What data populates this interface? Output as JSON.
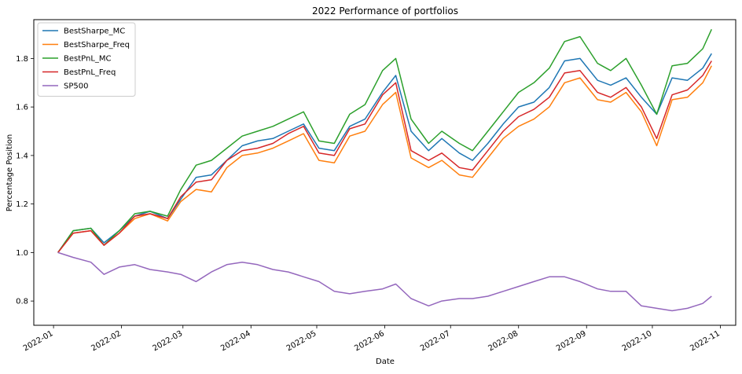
{
  "chart_data": {
    "type": "line",
    "title": "2022 Performance of portfolios",
    "xlabel": "Date",
    "ylabel": "Percentage Position",
    "xlim": [
      "2021-12-23",
      "2022-11-08"
    ],
    "ylim": [
      0.7,
      1.96
    ],
    "grid": false,
    "legend_position": "top-left",
    "x_ticks": [
      "2022-01",
      "2022-02",
      "2022-03",
      "2022-04",
      "2022-05",
      "2022-06",
      "2022-07",
      "2022-08",
      "2022-09",
      "2022-10",
      "2022-11"
    ],
    "y_ticks": [
      "0.8",
      "1.0",
      "1.2",
      "1.4",
      "1.6",
      "1.8"
    ],
    "x": [
      "2022-01-03",
      "2022-01-10",
      "2022-01-18",
      "2022-01-24",
      "2022-01-31",
      "2022-02-07",
      "2022-02-14",
      "2022-02-22",
      "2022-02-28",
      "2022-03-07",
      "2022-03-14",
      "2022-03-21",
      "2022-03-28",
      "2022-04-04",
      "2022-04-11",
      "2022-04-18",
      "2022-04-25",
      "2022-05-02",
      "2022-05-09",
      "2022-05-16",
      "2022-05-23",
      "2022-05-31",
      "2022-06-06",
      "2022-06-13",
      "2022-06-21",
      "2022-06-27",
      "2022-07-05",
      "2022-07-11",
      "2022-07-18",
      "2022-07-25",
      "2022-08-01",
      "2022-08-08",
      "2022-08-15",
      "2022-08-22",
      "2022-08-29",
      "2022-09-06",
      "2022-09-12",
      "2022-09-19",
      "2022-09-26",
      "2022-10-03",
      "2022-10-10",
      "2022-10-17",
      "2022-10-24",
      "2022-10-28"
    ],
    "series": [
      {
        "name": "BestSharpe_MC",
        "color": "#1f77b4",
        "values": [
          1.0,
          1.09,
          1.1,
          1.04,
          1.09,
          1.15,
          1.17,
          1.14,
          1.22,
          1.31,
          1.32,
          1.38,
          1.44,
          1.46,
          1.47,
          1.5,
          1.53,
          1.43,
          1.42,
          1.52,
          1.55,
          1.66,
          1.73,
          1.5,
          1.42,
          1.47,
          1.41,
          1.38,
          1.45,
          1.53,
          1.6,
          1.62,
          1.68,
          1.79,
          1.8,
          1.71,
          1.69,
          1.72,
          1.64,
          1.57,
          1.72,
          1.71,
          1.76,
          1.82
        ]
      },
      {
        "name": "BestSharpe_Freq",
        "color": "#ff7f0e",
        "values": [
          1.0,
          1.08,
          1.09,
          1.03,
          1.08,
          1.14,
          1.16,
          1.13,
          1.21,
          1.26,
          1.25,
          1.35,
          1.4,
          1.41,
          1.43,
          1.46,
          1.49,
          1.38,
          1.37,
          1.48,
          1.5,
          1.61,
          1.66,
          1.39,
          1.35,
          1.38,
          1.32,
          1.31,
          1.39,
          1.47,
          1.52,
          1.55,
          1.6,
          1.7,
          1.72,
          1.63,
          1.62,
          1.66,
          1.58,
          1.44,
          1.63,
          1.64,
          1.7,
          1.77
        ]
      },
      {
        "name": "BestPnL_MC",
        "color": "#2ca02c",
        "values": [
          1.0,
          1.09,
          1.1,
          1.03,
          1.09,
          1.16,
          1.17,
          1.15,
          1.26,
          1.36,
          1.38,
          1.43,
          1.48,
          1.5,
          1.52,
          1.55,
          1.58,
          1.46,
          1.45,
          1.57,
          1.61,
          1.75,
          1.8,
          1.55,
          1.45,
          1.5,
          1.45,
          1.42,
          1.5,
          1.58,
          1.66,
          1.7,
          1.76,
          1.87,
          1.89,
          1.78,
          1.75,
          1.8,
          1.69,
          1.57,
          1.77,
          1.78,
          1.84,
          1.92
        ]
      },
      {
        "name": "BestPnL_Freq",
        "color": "#d62728",
        "values": [
          1.0,
          1.08,
          1.09,
          1.03,
          1.08,
          1.15,
          1.16,
          1.14,
          1.23,
          1.29,
          1.3,
          1.38,
          1.42,
          1.43,
          1.45,
          1.49,
          1.52,
          1.41,
          1.4,
          1.51,
          1.53,
          1.65,
          1.7,
          1.42,
          1.38,
          1.41,
          1.35,
          1.34,
          1.42,
          1.5,
          1.56,
          1.59,
          1.64,
          1.74,
          1.75,
          1.66,
          1.64,
          1.68,
          1.6,
          1.47,
          1.65,
          1.67,
          1.73,
          1.79
        ]
      },
      {
        "name": "SP500",
        "color": "#9467bd",
        "values": [
          1.0,
          0.98,
          0.96,
          0.91,
          0.94,
          0.95,
          0.93,
          0.92,
          0.91,
          0.88,
          0.92,
          0.95,
          0.96,
          0.95,
          0.93,
          0.92,
          0.9,
          0.88,
          0.84,
          0.83,
          0.84,
          0.85,
          0.87,
          0.81,
          0.78,
          0.8,
          0.81,
          0.81,
          0.82,
          0.84,
          0.86,
          0.88,
          0.9,
          0.9,
          0.88,
          0.85,
          0.84,
          0.84,
          0.78,
          0.77,
          0.76,
          0.77,
          0.79,
          0.82
        ]
      }
    ]
  }
}
